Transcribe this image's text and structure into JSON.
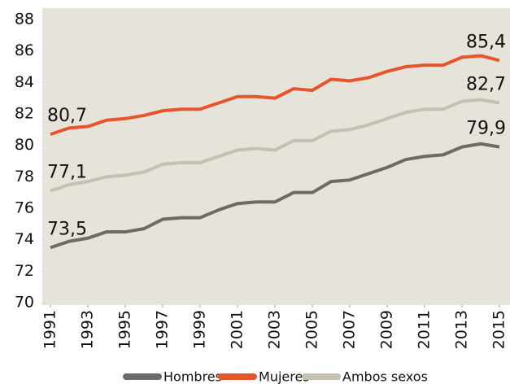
{
  "chart_data": {
    "type": "line",
    "x": [
      1991,
      1992,
      1993,
      1994,
      1995,
      1996,
      1997,
      1998,
      1999,
      2000,
      2001,
      2002,
      2003,
      2004,
      2005,
      2006,
      2007,
      2008,
      2009,
      2010,
      2011,
      2012,
      2013,
      2014,
      2015
    ],
    "xlim": [
      1991,
      2015
    ],
    "xticks": [
      1991,
      1993,
      1995,
      1997,
      1999,
      2001,
      2003,
      2005,
      2007,
      2009,
      2011,
      2013,
      2015
    ],
    "ylim": [
      70,
      88
    ],
    "yticks": [
      70,
      72,
      74,
      76,
      78,
      80,
      82,
      84,
      86,
      88
    ],
    "grid": false,
    "legend": "bottom",
    "series": [
      {
        "name": "Hombres",
        "color": "#6b6c68",
        "values": [
          73.5,
          73.9,
          74.1,
          74.5,
          74.5,
          74.7,
          75.3,
          75.4,
          75.4,
          75.9,
          76.3,
          76.4,
          76.4,
          77.0,
          77.0,
          77.7,
          77.8,
          78.2,
          78.6,
          79.1,
          79.3,
          79.4,
          79.9,
          80.1,
          79.9
        ],
        "value_labels": [
          "73,5",
          null,
          null,
          null,
          null,
          null,
          null,
          null,
          null,
          null,
          null,
          null,
          null,
          null,
          null,
          null,
          null,
          null,
          null,
          null,
          null,
          null,
          null,
          null,
          "79,9"
        ]
      },
      {
        "name": "Mujeres",
        "color": "#e8552a",
        "values": [
          80.7,
          81.1,
          81.2,
          81.6,
          81.7,
          81.9,
          82.2,
          82.3,
          82.3,
          82.7,
          83.1,
          83.1,
          83.0,
          83.6,
          83.5,
          84.2,
          84.1,
          84.3,
          84.7,
          85.0,
          85.1,
          85.1,
          85.6,
          85.7,
          85.4
        ],
        "value_labels": [
          "80,7",
          null,
          null,
          null,
          null,
          null,
          null,
          null,
          null,
          null,
          null,
          null,
          null,
          null,
          null,
          null,
          null,
          null,
          null,
          null,
          null,
          null,
          null,
          null,
          "85,4"
        ]
      },
      {
        "name": "Ambos sexos",
        "color": "#c6c0b0",
        "values": [
          77.1,
          77.5,
          77.7,
          78.0,
          78.1,
          78.3,
          78.8,
          78.9,
          78.9,
          79.3,
          79.7,
          79.8,
          79.7,
          80.3,
          80.3,
          80.9,
          81.0,
          81.3,
          81.7,
          82.1,
          82.3,
          82.3,
          82.8,
          82.9,
          82.7
        ],
        "value_labels": [
          "77,1",
          null,
          null,
          null,
          null,
          null,
          null,
          null,
          null,
          null,
          null,
          null,
          null,
          null,
          null,
          null,
          null,
          null,
          null,
          null,
          null,
          null,
          null,
          null,
          "82,7"
        ]
      }
    ]
  }
}
